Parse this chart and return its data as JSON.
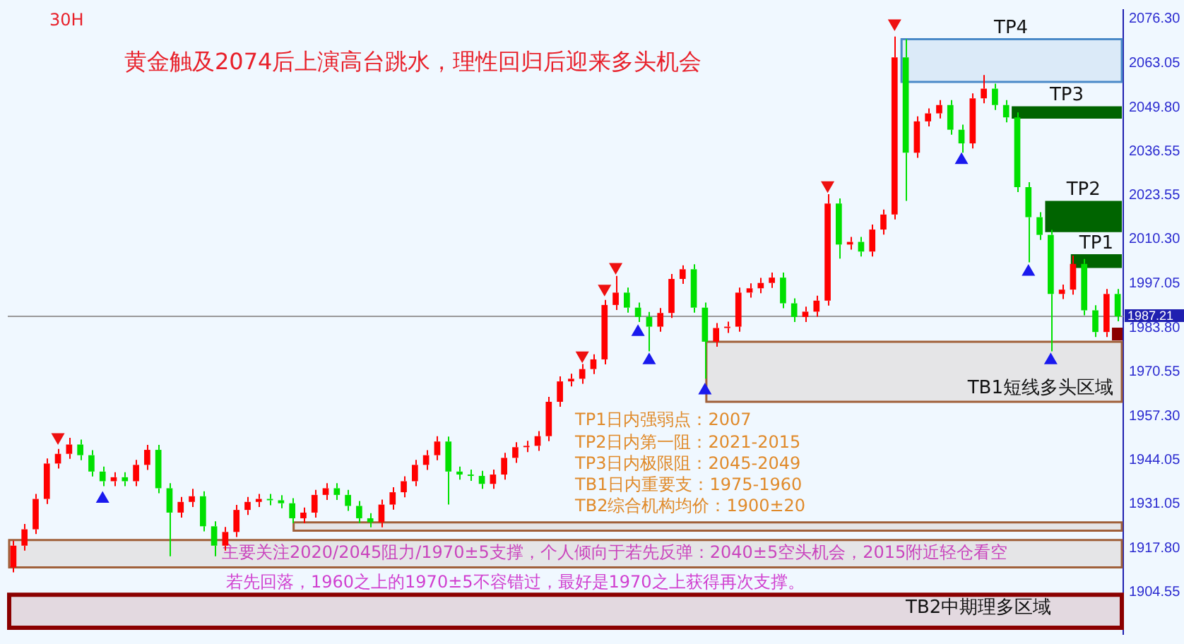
{
  "chart_data": {
    "type": "candlestick",
    "title": "黄金触及2074后上演高台跳水，理性回归后迎来多头机会",
    "subtitle": "30H",
    "annotations": [
      "TP1日内强弱点：2007",
      "TP2日内第一阻：2021-2015",
      "TP3日内极限阻：2045-2049",
      "TB1日内重要支：1975-1960",
      "TB2综合机构均价：1900±20",
      "主要关注2020/2045阻力/1970±5支撑，个人倾向于若先反弹：2040±5空头机会，2015附近轻仓看空",
      "若先回落，1960之上的1970±5不容错过，最好是1970之上获得再次支撑。"
    ],
    "categories": [
      null,
      null,
      null,
      null,
      null,
      null,
      null,
      null,
      null,
      null,
      null,
      null,
      null,
      null,
      null,
      null,
      null,
      null,
      null,
      null,
      null,
      null,
      null,
      null,
      null,
      null,
      null,
      null,
      null,
      null,
      null,
      null,
      null,
      null,
      null,
      null,
      null,
      null,
      null,
      null,
      null,
      null,
      null,
      null,
      null,
      null,
      null,
      null,
      null,
      null,
      null,
      null,
      null,
      null,
      null,
      null,
      null,
      null,
      null,
      null,
      null,
      null,
      null,
      null,
      null,
      null,
      null,
      null,
      null,
      null,
      null,
      null,
      null,
      null,
      null,
      null,
      null,
      null,
      null,
      null,
      null,
      null,
      null,
      null,
      null,
      null,
      null,
      null,
      null,
      null,
      null,
      null,
      null,
      null,
      null,
      null,
      null,
      null,
      null,
      null
    ],
    "ohlc": [
      [
        1912,
        1920,
        1910.5,
        1918.5
      ],
      [
        1918.5,
        1925,
        1917,
        1923.4
      ],
      [
        1923.4,
        1934,
        1922,
        1932.5
      ],
      [
        1932.5,
        1944.6,
        1931,
        1943.1
      ],
      [
        1943.1,
        1947.5,
        1941.6,
        1946.0
      ],
      [
        1946.0,
        1950.8,
        1944.5,
        1948.8
      ],
      [
        1948.8,
        1950.3,
        1944.1,
        1945.6
      ],
      [
        1945.6,
        1947.1,
        1939.2,
        1940.7
      ],
      [
        1940.7,
        1942.2,
        1936.3,
        1937.8
      ],
      [
        1937.8,
        1940.5,
        1936.3,
        1939.0
      ],
      [
        1939.0,
        1940.5,
        1936.3,
        1937.8
      ],
      [
        1937.8,
        1944.2,
        1936.3,
        1942.7
      ],
      [
        1942.7,
        1948.7,
        1941.2,
        1947.2
      ],
      [
        1947.2,
        1948.7,
        1934.2,
        1935.7
      ],
      [
        1935.7,
        1937.2,
        1915.3,
        1928.4
      ],
      [
        1928.4,
        1933.1,
        1926.9,
        1931.6
      ],
      [
        1931.6,
        1935.5,
        1930.1,
        1933.3
      ],
      [
        1933.3,
        1934.8,
        1922.8,
        1924.3
      ],
      [
        1924.3,
        1925.8,
        1915.3,
        1918.5
      ],
      [
        1918.5,
        1924.1,
        1917,
        1922.6
      ],
      [
        1922.6,
        1930.7,
        1921.1,
        1929.2
      ],
      [
        1929.2,
        1933.1,
        1927.7,
        1931.6
      ],
      [
        1931.6,
        1934,
        1930.1,
        1932.5
      ],
      [
        1932.5,
        1934,
        1930.6,
        1932.1
      ],
      [
        1932.1,
        1933.6,
        1929.7,
        1931.2
      ],
      [
        1931.2,
        1932.7,
        1925.2,
        1926.7
      ],
      [
        1926.7,
        1929.9,
        1925.2,
        1928.4
      ],
      [
        1928.4,
        1935.2,
        1926.9,
        1933.7
      ],
      [
        1933.7,
        1937.2,
        1932.2,
        1935.7
      ],
      [
        1935.7,
        1937.2,
        1932.2,
        1933.7
      ],
      [
        1933.7,
        1935.2,
        1928.9,
        1930.4
      ],
      [
        1930.4,
        1931.9,
        1925.2,
        1926.7
      ],
      [
        1926.7,
        1928.2,
        1924,
        1925.5
      ],
      [
        1925.5,
        1932.3,
        1924,
        1930.8
      ],
      [
        1930.8,
        1936,
        1929.3,
        1934.5
      ],
      [
        1934.5,
        1939.3,
        1933,
        1937.8
      ],
      [
        1937.8,
        1944.2,
        1936.3,
        1942.7
      ],
      [
        1942.7,
        1947.1,
        1941.2,
        1945.6
      ],
      [
        1945.6,
        1951.3,
        1944.1,
        1949.7
      ],
      [
        1949.7,
        1951.2,
        1930.8,
        1940.7
      ],
      [
        1940.7,
        1942.2,
        1938.3,
        1939.8
      ],
      [
        1939.8,
        1941.3,
        1937.9,
        1939.4
      ],
      [
        1939.4,
        1940.9,
        1935.5,
        1937.0
      ],
      [
        1937.0,
        1941.3,
        1935.5,
        1939.8
      ],
      [
        1939.8,
        1946.3,
        1938.3,
        1944.8
      ],
      [
        1944.8,
        1949.5,
        1943.3,
        1948.0
      ],
      [
        1948.0,
        1949.9,
        1946.5,
        1948.4
      ],
      [
        1948.4,
        1952.8,
        1946.9,
        1951.3
      ],
      [
        1951.3,
        1963.1,
        1949.8,
        1961.6
      ],
      [
        1961.6,
        1969.2,
        1960.1,
        1967.7
      ],
      [
        1967.7,
        1970,
        1966.2,
        1968.5
      ],
      [
        1968.5,
        1972.9,
        1967,
        1971.4
      ],
      [
        1971.4,
        1975.8,
        1969.9,
        1974.3
      ],
      [
        1974.3,
        1992.1,
        1972.8,
        1990.6
      ],
      [
        1990.6,
        1999.3,
        1989.1,
        1994.3
      ],
      [
        1994.3,
        1995.8,
        1988.3,
        1989.8
      ],
      [
        1989.8,
        1991.3,
        1985.5,
        1987.0
      ],
      [
        1987.0,
        1988.5,
        1976.7,
        1984.1
      ],
      [
        1984.1,
        1989.7,
        1982.6,
        1988.2
      ],
      [
        1988.2,
        1999.9,
        1986.7,
        1998.4
      ],
      [
        1998.4,
        2002.5,
        1996.9,
        2001.3
      ],
      [
        2001.3,
        2002.8,
        1988.3,
        1989.8
      ],
      [
        1989.8,
        1991.3,
        1968.5,
        1979.6
      ],
      [
        1979.6,
        1985.2,
        1978.1,
        1983.7
      ],
      [
        1983.7,
        1985.6,
        1982.2,
        1984.1
      ],
      [
        1984.1,
        1995.8,
        1982.6,
        1994.3
      ],
      [
        1994.3,
        1997.1,
        1992.8,
        1995.6
      ],
      [
        1995.6,
        1998.7,
        1994.1,
        1997.2
      ],
      [
        1997.2,
        2000.3,
        1995.7,
        1998.8
      ],
      [
        1998.8,
        2000.3,
        1989.6,
        1991.1
      ],
      [
        1991.1,
        1992.6,
        1985.5,
        1987.0
      ],
      [
        1987.0,
        1990.1,
        1985.5,
        1988.6
      ],
      [
        1988.6,
        1993.4,
        1987.1,
        1991.9
      ],
      [
        1991.9,
        2023.8,
        1990.4,
        2021.0
      ],
      [
        2021.0,
        2022.5,
        2004.5,
        2008.7
      ],
      [
        2008.7,
        2011,
        2007.2,
        2009.5
      ],
      [
        2009.5,
        2011,
        2005.1,
        2006.6
      ],
      [
        2006.6,
        2014.7,
        2005.1,
        2013.2
      ],
      [
        2013.2,
        2019.2,
        2011.7,
        2017.7
      ],
      [
        2017.7,
        2071.0,
        2016.2,
        2064.8
      ],
      [
        2064.8,
        2070.2,
        2021.8,
        2036.2
      ],
      [
        2036.2,
        2047.1,
        2034.7,
        2045.6
      ],
      [
        2045.6,
        2049.5,
        2044.1,
        2048.0
      ],
      [
        2048.0,
        2052,
        2046.5,
        2050.5
      ],
      [
        2050.5,
        2052,
        2041.6,
        2043.1
      ],
      [
        2043.1,
        2044.6,
        2036.2,
        2039.0
      ],
      [
        2039.0,
        2054,
        2037.5,
        2052.5
      ],
      [
        2052.5,
        2059.5,
        2051,
        2055.4
      ],
      [
        2055.4,
        2056.9,
        2049,
        2050.5
      ],
      [
        2050.5,
        2052,
        2045.3,
        2046.8
      ],
      [
        2046.8,
        2048.3,
        2024.4,
        2025.9
      ],
      [
        2025.9,
        2027.4,
        2003.4,
        2016.9
      ],
      [
        2016.9,
        2018.4,
        2010.1,
        2011.6
      ],
      [
        2011.6,
        2013.1,
        1976.7,
        1993.9
      ],
      [
        1993.9,
        1996.7,
        1992.4,
        1995.2
      ],
      [
        1995.2,
        2005.4,
        1993.7,
        2002.9
      ],
      [
        2002.9,
        2004.4,
        1987.5,
        1989.0
      ],
      [
        1989.0,
        1990.5,
        1981.0,
        1982.5
      ],
      [
        1982.5,
        1995.4,
        1981.0,
        1993.9
      ],
      [
        1993.9,
        1995.4,
        1985.7,
        1987.2
      ]
    ],
    "colors": [
      "#ff0000",
      "#ff0000",
      "#ff0000",
      "#ff0000",
      "#ff0000",
      "#ff0000",
      "#00e000",
      "#00e000",
      "#00e000",
      "#ff0000",
      "#00e000",
      "#ff0000",
      "#ff0000",
      "#00e000",
      "#00e000",
      "#ff0000",
      "#ff0000",
      "#00e000",
      "#00e000",
      "#ff0000",
      "#ff0000",
      "#ff0000",
      "#ff0000",
      "#00e000",
      "#00e000",
      "#00e000",
      "#ff0000",
      "#ff0000",
      "#ff0000",
      "#00e000",
      "#00e000",
      "#00e000",
      "#00e000",
      "#ff0000",
      "#ff0000",
      "#ff0000",
      "#ff0000",
      "#ff0000",
      "#ff0000",
      "#00e000",
      "#00e000",
      "#00e000",
      "#00e000",
      "#ff0000",
      "#ff0000",
      "#ff0000",
      "#ff0000",
      "#ff0000",
      "#ff0000",
      "#ff0000",
      "#ff0000",
      "#ff0000",
      "#ff0000",
      "#ff0000",
      "#ff0000",
      "#00e000",
      "#00e000",
      "#00e000",
      "#ff0000",
      "#ff0000",
      "#ff0000",
      "#00e000",
      "#00e000",
      "#ff0000",
      "#ff0000",
      "#ff0000",
      "#ff0000",
      "#ff0000",
      "#ff0000",
      "#00e000",
      "#00e000",
      "#ff0000",
      "#ff0000",
      "#ff0000",
      "#00e000",
      "#ff0000",
      "#00e000",
      "#ff0000",
      "#ff0000",
      "#ff0000",
      "#00e000",
      "#ff0000",
      "#ff0000",
      "#ff0000",
      "#00e000",
      "#00e000",
      "#ff0000",
      "#ff0000",
      "#00e000",
      "#00e000",
      "#00e000",
      "#00e000",
      "#00e000",
      "#00e000",
      "#ff0000",
      "#ff0000",
      "#00e000",
      "#00e000",
      "#ff0000",
      "#00e000"
    ],
    "series": [
      {
        "type": "scatter",
        "color": "#ee1111",
        "marker": "triangle",
        "values": [
          null,
          null,
          null,
          null,
          1951,
          null,
          null,
          null,
          null,
          null,
          null,
          null,
          null,
          null,
          null,
          null,
          null,
          null,
          null,
          null,
          null,
          null,
          null,
          null,
          null,
          null,
          null,
          null,
          null,
          null,
          null,
          null,
          null,
          null,
          null,
          null,
          null,
          null,
          null,
          null,
          null,
          null,
          null,
          null,
          null,
          null,
          null,
          null,
          null,
          null,
          null,
          1975.5,
          null,
          1995.5,
          2002,
          null,
          null,
          null,
          null,
          null,
          null,
          null,
          null,
          null,
          null,
          null,
          null,
          null,
          null,
          null,
          null,
          null,
          null,
          2026.5,
          null,
          null,
          null,
          null,
          null,
          2075,
          null,
          null,
          null,
          null,
          null,
          null,
          null,
          null,
          null,
          null,
          null,
          null,
          null,
          null,
          null,
          null,
          null,
          null,
          null,
          null
        ]
      },
      {
        "type": "scatter",
        "color": "#1a1aee",
        "marker": "triangle",
        "values": [
          null,
          null,
          null,
          null,
          null,
          null,
          null,
          null,
          1932.5,
          null,
          null,
          null,
          null,
          null,
          null,
          null,
          null,
          null,
          null,
          null,
          null,
          null,
          null,
          null,
          null,
          null,
          null,
          null,
          null,
          null,
          null,
          null,
          null,
          null,
          null,
          null,
          null,
          null,
          null,
          null,
          null,
          null,
          null,
          null,
          null,
          null,
          null,
          null,
          null,
          null,
          null,
          null,
          null,
          null,
          null,
          null,
          1982.5,
          1974,
          null,
          null,
          null,
          null,
          1965,
          null,
          null,
          null,
          null,
          null,
          null,
          null,
          null,
          null,
          null,
          null,
          null,
          null,
          null,
          null,
          null,
          null,
          null,
          null,
          null,
          null,
          null,
          2034,
          null,
          null,
          null,
          null,
          null,
          2000.5,
          null,
          1974,
          null,
          null,
          null,
          null,
          null,
          null
        ]
      }
    ],
    "ylim": [
      1892,
      2079
    ],
    "yticks": [
      {
        "value": 1904.55,
        "label": "1904.55"
      },
      {
        "value": 1917.8,
        "label": "1917.80"
      },
      {
        "value": 1931.05,
        "label": "1931.05"
      },
      {
        "value": 1944.05,
        "label": "1944.05"
      },
      {
        "value": 1957.3,
        "label": "1957.30"
      },
      {
        "value": 1970.55,
        "label": "1970.55"
      },
      {
        "value": 1983.8,
        "label": "1983.80"
      },
      {
        "value": 1997.05,
        "label": "1997.05"
      },
      {
        "value": 2010.3,
        "label": "2010.30"
      },
      {
        "value": 2023.55,
        "label": "2023.55"
      },
      {
        "value": 2036.55,
        "label": "2036.55"
      },
      {
        "value": 2049.8,
        "label": "2049.80"
      },
      {
        "value": 2063.05,
        "label": "2063.05"
      },
      {
        "value": 2076.3,
        "label": "2076.30"
      }
    ],
    "tick_labels": "y",
    "ref_lines": [
      {
        "axis": "y",
        "value": 1987.21,
        "label": "1987.21",
        "color": "#999999"
      }
    ],
    "bands": [
      {
        "axis": "y",
        "from": 2057.4,
        "to": 2070.2,
        "label": "TP4",
        "color": "#4a8ac8"
      },
      {
        "axis": "y",
        "from": 2046.4,
        "to": 2050.1,
        "label": "TP3",
        "color": "#006400"
      },
      {
        "axis": "y",
        "from": 2012.4,
        "to": 2021.8,
        "label": "TP2",
        "color": "#006400"
      },
      {
        "axis": "y",
        "from": 2001.7,
        "to": 2005.8,
        "label": "TP1",
        "color": "#006400"
      },
      {
        "axis": "y",
        "from": 1961.6,
        "to": 1979.6,
        "label": "TB1短线多头区域",
        "color": "#a0603a"
      },
      {
        "axis": "y",
        "from": 1923.0,
        "to": 1925.5,
        "color": "#a0603a"
      },
      {
        "axis": "y",
        "from": 1912.0,
        "to": 1920.2,
        "color": "#a0603a"
      },
      {
        "axis": "y",
        "from": 1893.9,
        "to": 1903.8,
        "label": "TB2中期理多区域",
        "color": "#8b0000"
      }
    ],
    "legend": false,
    "grid": false
  }
}
